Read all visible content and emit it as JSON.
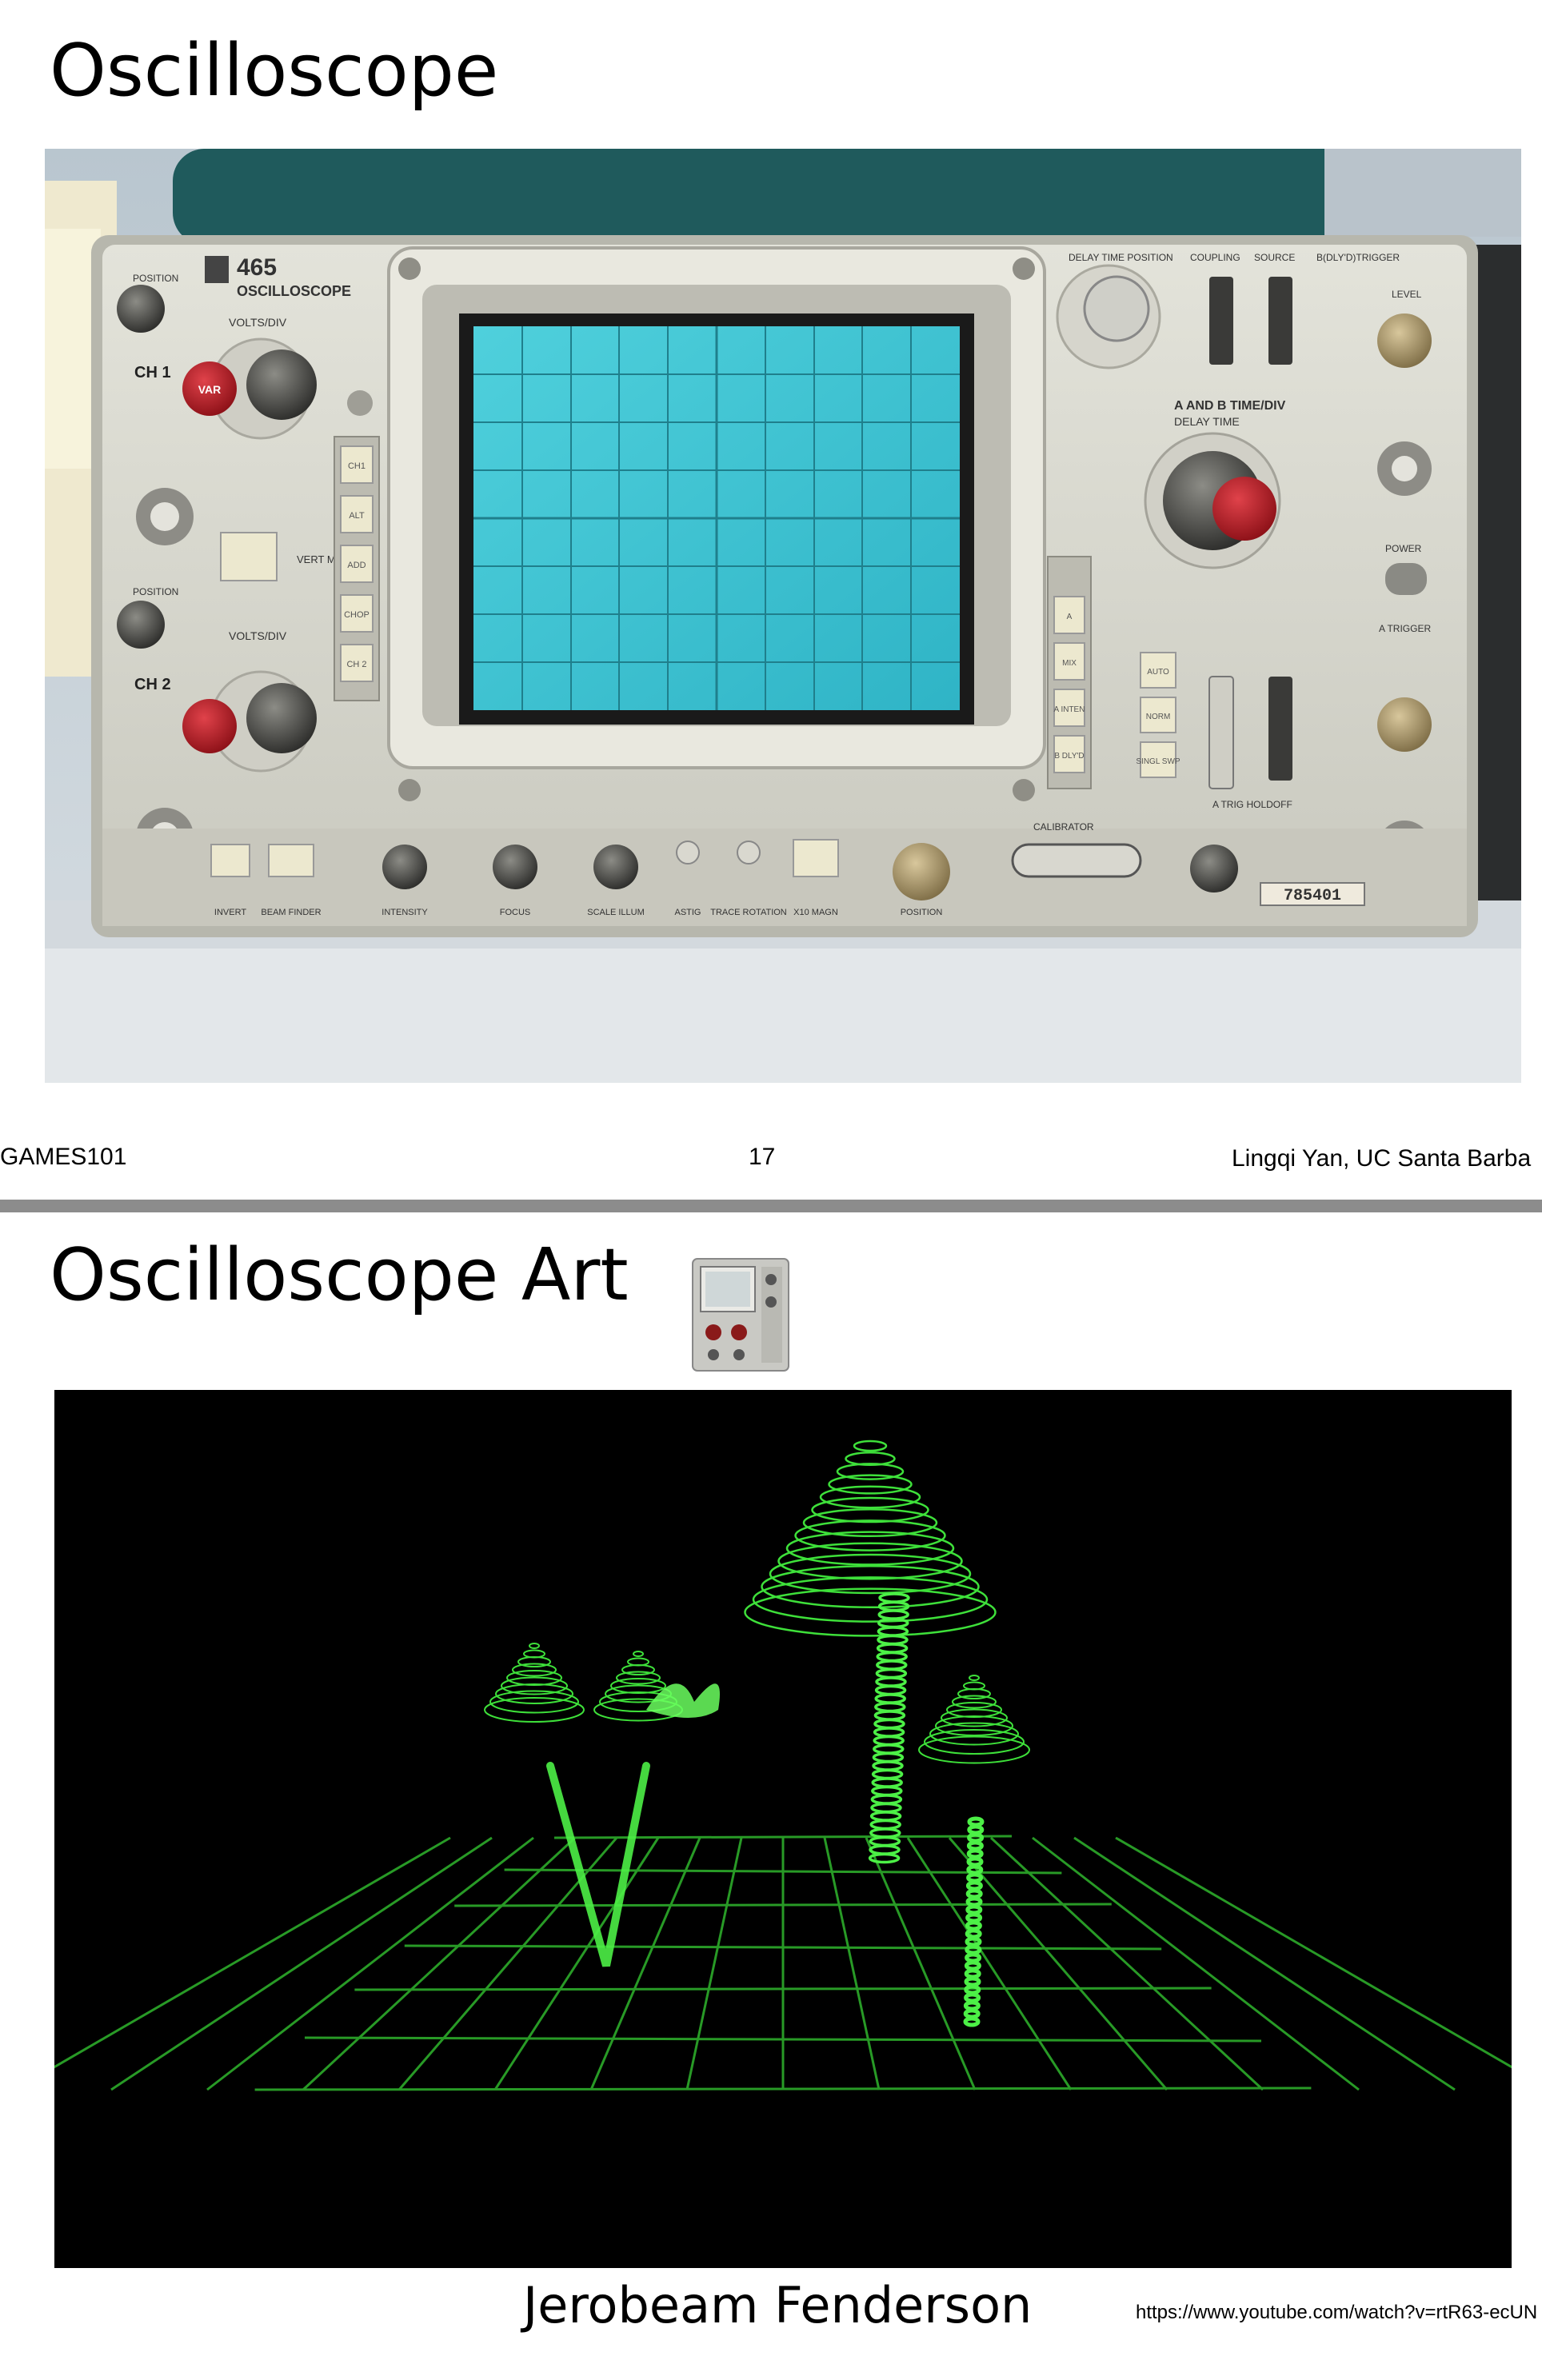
{
  "slide1": {
    "title": "Oscilloscope",
    "device": {
      "brand_number": "465",
      "brand_name": "OSCILLOSCOPE",
      "left_labels": {
        "position_top": "POSITION",
        "volts_div_top": "VOLTS/DIV",
        "ch1": "CH 1",
        "var": "VAR",
        "position_bottom": "POSITION",
        "volts_div_bottom": "VOLTS/DIV",
        "ch2": "CH 2",
        "vert_mode": "VERT MODE"
      },
      "mode_buttons": [
        "CH1",
        "ALT",
        "ADD",
        "CHOP",
        "CH 2"
      ],
      "right_labels": {
        "delay_time_position": "DELAY TIME POSITION",
        "coupling": "COUPLING",
        "source": "SOURCE",
        "trigger": "B(DLY'D)TRIGGER",
        "time_div": "A AND B TIME/DIV",
        "delay_time": "DELAY TIME",
        "level": "LEVEL",
        "power": "POWER",
        "a_trigger": "A TRIGGER",
        "a_trig_holdoff": "A TRIG HOLDOFF",
        "calibrator": "CALIBRATOR"
      },
      "horiz_buttons": [
        "A",
        "MIX",
        "A INTEN",
        "B DLY'D"
      ],
      "trig_buttons": [
        "AUTO",
        "NORM",
        "SINGL SWP"
      ],
      "bottom_labels": [
        "INVERT",
        "BEAM FINDER",
        "INTENSITY",
        "FOCUS",
        "SCALE ILLUM",
        "ASTIG",
        "TRACE ROTATION",
        "X10 MAGN",
        "POSITION"
      ],
      "serial": "785401"
    },
    "footer": {
      "left": "GAMES101",
      "page": "17",
      "right": "Lingqi Yan, UC Santa Barba"
    }
  },
  "slide2": {
    "title": "Oscilloscope Art",
    "caption": "Jerobeam Fenderson",
    "url": "https://www.youtube.com/watch?v=rtR63-ecUN"
  },
  "colors": {
    "screen": "#3fc3d2",
    "grid_green": "#3ee03a",
    "panel": "#d9d9cf",
    "divider": "#8c8c8c"
  }
}
